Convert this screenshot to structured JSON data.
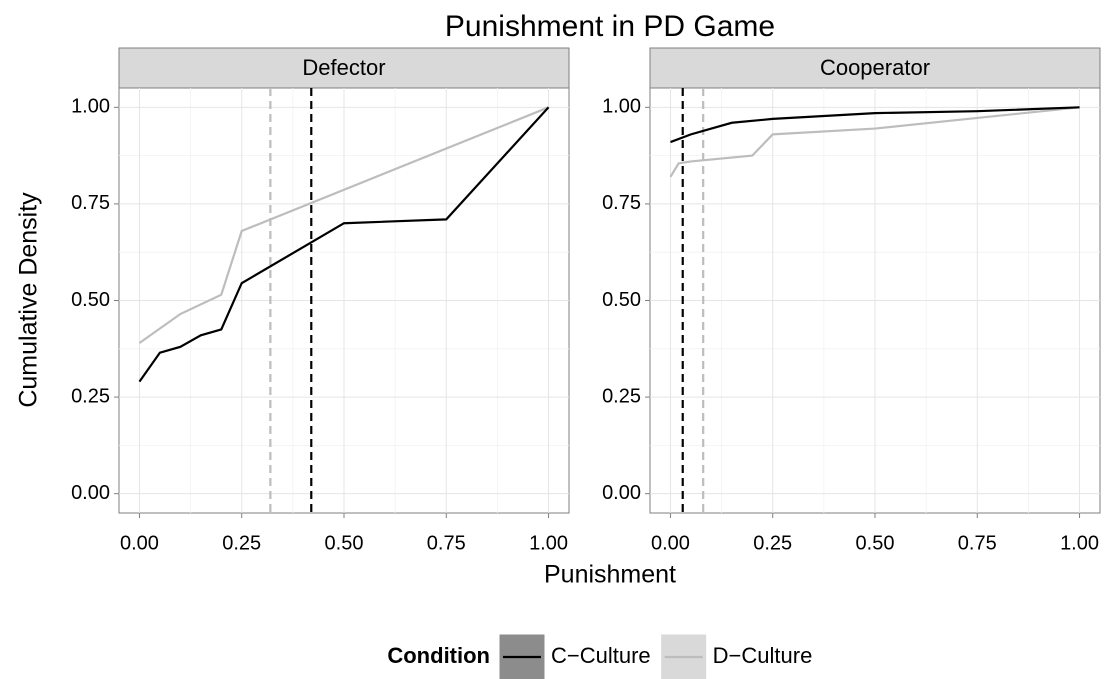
{
  "chart_data": {
    "type": "line",
    "title": "Punishment in PD Game",
    "xlabel": "Punishment",
    "ylabel": "Cumulative Density",
    "legend_title": "Condition",
    "grid": true,
    "xlim": [
      -0.05,
      1.05
    ],
    "ylim": [
      -0.05,
      1.05
    ],
    "xticks": [
      {
        "value": 0,
        "label": "0.00"
      },
      {
        "value": 0.25,
        "label": "0.25"
      },
      {
        "value": 0.5,
        "label": "0.50"
      },
      {
        "value": 0.75,
        "label": "0.75"
      },
      {
        "value": 1,
        "label": "1.00"
      }
    ],
    "yticks": [
      {
        "value": 0,
        "label": "0.00"
      },
      {
        "value": 0.25,
        "label": "0.25"
      },
      {
        "value": 0.5,
        "label": "0.50"
      },
      {
        "value": 0.75,
        "label": "0.75"
      },
      {
        "value": 1,
        "label": "1.00"
      }
    ],
    "legend": [
      {
        "name": "C−Culture",
        "color": "#000000",
        "key_fill": "#8c8c8c"
      },
      {
        "name": "D−Culture",
        "color": "#bdbdbd",
        "key_fill": "#d9d9d9"
      }
    ],
    "facets": [
      {
        "name": "Defector",
        "series": [
          {
            "color": "#000000",
            "x": [
              0,
              0.05,
              0.1,
              0.15,
              0.2,
              0.25,
              0.5,
              0.75,
              1
            ],
            "values": [
              0.29,
              0.365,
              0.38,
              0.41,
              0.425,
              0.545,
              0.7,
              0.71,
              1
            ],
            "vline": 0.42
          },
          {
            "color": "#bdbdbd",
            "x": [
              0,
              0.1,
              0.2,
              0.25,
              1
            ],
            "values": [
              0.39,
              0.465,
              0.515,
              0.68,
              1
            ],
            "vline": 0.32
          }
        ]
      },
      {
        "name": "Cooperator",
        "series": [
          {
            "color": "#000000",
            "x": [
              0,
              0.05,
              0.1,
              0.15,
              0.25,
              0.5,
              0.75,
              1
            ],
            "values": [
              0.91,
              0.93,
              0.945,
              0.96,
              0.97,
              0.985,
              0.99,
              1
            ],
            "vline": 0.03
          },
          {
            "color": "#bdbdbd",
            "x": [
              0,
              0.02,
              0.05,
              0.2,
              0.25,
              0.5,
              1
            ],
            "values": [
              0.82,
              0.855,
              0.86,
              0.875,
              0.93,
              0.945,
              1
            ],
            "vline": 0.08
          }
        ]
      }
    ]
  }
}
